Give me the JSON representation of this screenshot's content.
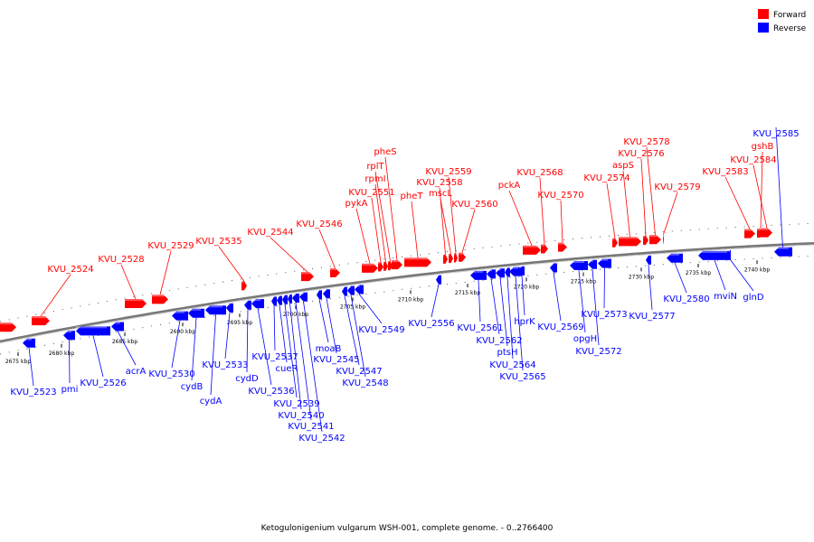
{
  "legend": {
    "forward": {
      "label": "Forward",
      "color": "#ff0000"
    },
    "reverse": {
      "label": "Reverse",
      "color": "#0000ff"
    }
  },
  "caption": "Ketogulonigenium vulgarum WSH-001, complete genome. - 0..2766400",
  "scale": {
    "ticks": [
      {
        "label": "2675 kbp"
      },
      {
        "label": "2680 kbp"
      },
      {
        "label": "2685 kbp"
      },
      {
        "label": "2690 kbp"
      },
      {
        "label": "2695 kbp"
      },
      {
        "label": "2700 kbp"
      },
      {
        "label": "2705 kbp"
      },
      {
        "label": "2710 kbp"
      },
      {
        "label": "2715 kbp"
      },
      {
        "label": "2720 kbp"
      },
      {
        "label": "2725 kbp"
      },
      {
        "label": "2730 kbp"
      },
      {
        "label": "2735 kbp"
      },
      {
        "label": "2740 kbp"
      }
    ]
  },
  "forward_genes": [
    {
      "label": ""
    },
    {
      "label": "KVU_2524"
    },
    {
      "label": "KVU_2528"
    },
    {
      "label": "KVU_2529"
    },
    {
      "label": "KVU_2535"
    },
    {
      "label": "KVU_2544"
    },
    {
      "label": "KVU_2546"
    },
    {
      "label": "pykA"
    },
    {
      "label": "KVU_2551"
    },
    {
      "label": "rpmI"
    },
    {
      "label": "rplT"
    },
    {
      "label": "pheS"
    },
    {
      "label": "pheT"
    },
    {
      "label": "KVU_2558"
    },
    {
      "label": "mscL"
    },
    {
      "label": "KVU_2559"
    },
    {
      "label": "KVU_2560"
    },
    {
      "label": "pckA"
    },
    {
      "label": "KVU_2568"
    },
    {
      "label": "KVU_2570"
    },
    {
      "label": "KVU_2574"
    },
    {
      "label": "aspS"
    },
    {
      "label": "KVU_2576"
    },
    {
      "label": "KVU_2578"
    },
    {
      "label": "KVU_2579"
    },
    {
      "label": "KVU_2583"
    },
    {
      "label": "gshB"
    },
    {
      "label": "KVU_2584"
    }
  ],
  "reverse_genes": [
    {
      "label": "KVU_2523"
    },
    {
      "label": "pmi"
    },
    {
      "label": "KVU_2526"
    },
    {
      "label": "acrA"
    },
    {
      "label": "KVU_2530"
    },
    {
      "label": "cydB"
    },
    {
      "label": "cydA"
    },
    {
      "label": "KVU_2533"
    },
    {
      "label": "cydD"
    },
    {
      "label": "KVU_2536"
    },
    {
      "label": "KVU_2537"
    },
    {
      "label": "cueR"
    },
    {
      "label": "KVU_2539"
    },
    {
      "label": "KVU_2540"
    },
    {
      "label": "KVU_2541"
    },
    {
      "label": "KVU_2542"
    },
    {
      "label": "moaB"
    },
    {
      "label": "KVU_2545"
    },
    {
      "label": "KVU_2547"
    },
    {
      "label": "KVU_2548"
    },
    {
      "label": "KVU_2549"
    },
    {
      "label": "KVU_2556"
    },
    {
      "label": "KVU_2561"
    },
    {
      "label": "KVU_2562"
    },
    {
      "label": "ptsH"
    },
    {
      "label": "KVU_2564"
    },
    {
      "label": "KVU_2565"
    },
    {
      "label": "hprK"
    },
    {
      "label": "KVU_2569"
    },
    {
      "label": "opgH"
    },
    {
      "label": "KVU_2572"
    },
    {
      "label": "KVU_2573"
    },
    {
      "label": "KVU_2577"
    },
    {
      "label": "KVU_2580"
    },
    {
      "label": "mviN"
    },
    {
      "label": "glnD"
    },
    {
      "label": "KVU_2585"
    }
  ]
}
